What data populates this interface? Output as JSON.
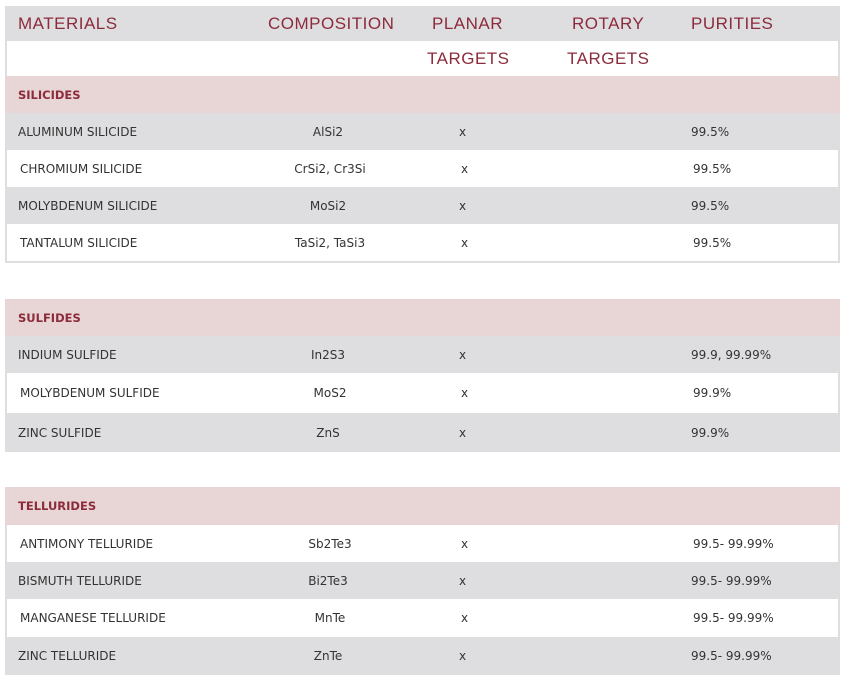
{
  "header": {
    "materials": "MATERIALS",
    "composition": "COMPOSITION",
    "planar_line1": "PLANAR",
    "planar_line2": "TARGETS",
    "rotary_line1": "ROTARY",
    "rotary_line2": "TARGETS",
    "purities": "PURITIES"
  },
  "sections": [
    {
      "title": "SILICIDES",
      "rows": [
        {
          "material": "ALUMINUM SILICIDE",
          "composition": "AlSi2",
          "planar": "x",
          "purity": "99.5%"
        },
        {
          "material": "CHROMIUM SILICIDE",
          "composition": "CrSi2, Cr3Si",
          "planar": "x",
          "purity": "99.5%"
        },
        {
          "material": "MOLYBDENUM SILICIDE",
          "composition": "MoSi2",
          "planar": "x",
          "purity": "99.5%"
        },
        {
          "material": "TANTALUM SILICIDE",
          "composition": "TaSi2, TaSi3",
          "planar": "x",
          "purity": "99.5%"
        }
      ]
    },
    {
      "title": "SULFIDES",
      "rows": [
        {
          "material": "INDIUM SULFIDE",
          "composition": "In2S3",
          "planar": "x",
          "purity": "99.9, 99.99%"
        },
        {
          "material": "MOLYBDENUM SULFIDE",
          "composition": "MoS2",
          "planar": "x",
          "purity": "99.9%"
        },
        {
          "material": "ZINC SULFIDE",
          "composition": "ZnS",
          "planar": "x",
          "purity": "99.9%"
        }
      ]
    },
    {
      "title": "TELLURIDES",
      "rows": [
        {
          "material": "ANTIMONY TELLURIDE",
          "composition": "Sb2Te3",
          "planar": "x",
          "purity": "99.5- 99.99%"
        },
        {
          "material": "BISMUTH TELLURIDE",
          "composition": "Bi2Te3",
          "planar": "x",
          "purity": "99.5- 99.99%"
        },
        {
          "material": "MANGANESE TELLURIDE",
          "composition": "MnTe",
          "planar": "x",
          "purity": "99.5- 99.99%"
        },
        {
          "material": "ZINC TELLURIDE",
          "composition": "ZnTe",
          "planar": "x",
          "purity": "99.5- 99.99%"
        }
      ]
    }
  ]
}
